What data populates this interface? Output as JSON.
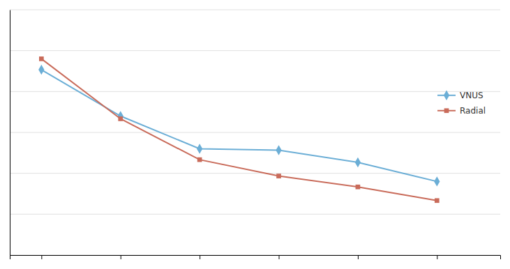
{
  "chart_data": {
    "type": "line",
    "x": [
      1,
      2,
      3,
      4,
      5,
      6
    ],
    "series": [
      {
        "name": "VNUS",
        "color": "#6baed6",
        "marker": "diamond",
        "values": [
          6.8,
          5.1,
          3.9,
          3.85,
          3.4,
          2.7
        ]
      },
      {
        "name": "Radial",
        "color": "#c96b5a",
        "marker": "square",
        "values": [
          7.2,
          5.0,
          3.5,
          2.9,
          2.5,
          2.0
        ]
      }
    ],
    "xlim": [
      0.6,
      6.8
    ],
    "xticks": [
      1,
      2,
      3,
      4,
      5,
      6
    ],
    "ylim": [
      0,
      9
    ],
    "yticks": [
      0,
      1.5,
      3,
      4.5,
      6,
      7.5,
      9
    ],
    "tick_labels": false,
    "grid": "y",
    "legend": "right"
  }
}
